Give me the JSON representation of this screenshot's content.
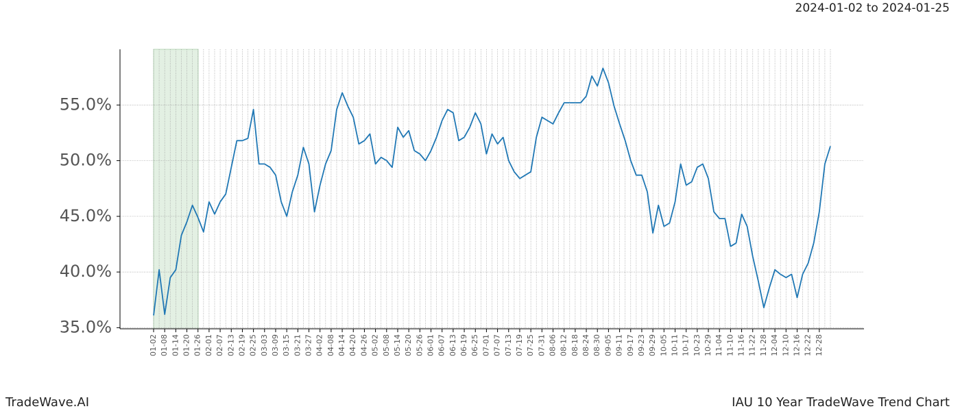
{
  "chart_data": {
    "type": "line",
    "title": "IAU 10 Year TradeWave Trend Chart",
    "subtitle": "2024-01-02 to 2024-01-25",
    "brand": "TradeWave.AI",
    "categories": [
      "01-02",
      null,
      "01-08",
      null,
      "01-14",
      null,
      "01-20",
      null,
      "01-26",
      null,
      "02-01",
      null,
      "02-07",
      null,
      "02-13",
      null,
      "02-19",
      null,
      "02-25",
      null,
      "03-03",
      null,
      "03-09",
      null,
      "03-15",
      null,
      "03-21",
      null,
      "03-27",
      null,
      "04-02",
      null,
      "04-08",
      null,
      "04-14",
      null,
      "04-20",
      null,
      "04-26",
      null,
      "05-02",
      null,
      "05-08",
      null,
      "05-14",
      null,
      "05-20",
      null,
      "05-26",
      null,
      "06-01",
      null,
      "06-07",
      null,
      "06-13",
      null,
      "06-19",
      null,
      "06-25",
      null,
      "07-01",
      null,
      "07-07",
      null,
      "07-13",
      null,
      "07-19",
      null,
      "07-25",
      null,
      "07-31",
      null,
      "08-06",
      null,
      "08-12",
      null,
      "08-18",
      null,
      "08-24",
      null,
      "08-30",
      null,
      "09-05",
      null,
      "09-11",
      null,
      "09-17",
      null,
      "09-23",
      null,
      "09-29",
      null,
      "10-05",
      null,
      "10-11",
      null,
      "10-17",
      null,
      "10-23",
      null,
      "10-29",
      null,
      "11-04",
      null,
      "11-10",
      null,
      "11-16",
      null,
      "11-22",
      null,
      "11-28",
      null,
      "12-04",
      null,
      "12-10",
      null,
      "12-16",
      null,
      "12-22",
      null,
      "12-28",
      null,
      null
    ],
    "series": [
      {
        "name": "IAU",
        "color": "#1f77b4",
        "values": [
          36.1,
          40.2,
          36.2,
          39.5,
          40.2,
          43.3,
          44.5,
          46.0,
          44.9,
          43.6,
          46.3,
          45.2,
          46.3,
          47.0,
          49.4,
          51.8,
          51.8,
          52.0,
          54.6,
          49.7,
          49.7,
          49.4,
          48.7,
          46.3,
          45.0,
          47.2,
          48.7,
          51.2,
          49.7,
          45.4,
          47.8,
          49.7,
          50.9,
          54.6,
          56.1,
          54.9,
          53.9,
          51.5,
          51.8,
          52.4,
          49.7,
          50.3,
          50.0,
          49.4,
          53.0,
          52.1,
          52.7,
          50.9,
          50.6,
          50.0,
          50.9,
          52.1,
          53.6,
          54.6,
          54.3,
          51.8,
          52.1,
          53.0,
          54.3,
          53.3,
          50.6,
          52.4,
          51.5,
          52.1,
          50.0,
          49.0,
          48.4,
          48.7,
          49.0,
          52.1,
          53.9,
          53.6,
          53.3,
          54.3,
          55.2,
          55.2,
          55.2,
          55.2,
          55.8,
          57.6,
          56.7,
          58.3,
          57.0,
          54.9,
          53.3,
          51.8,
          50.0,
          48.7,
          48.7,
          47.2,
          43.5,
          46.0,
          44.1,
          44.4,
          46.3,
          49.7,
          47.8,
          48.1,
          49.4,
          49.7,
          48.4,
          45.4,
          44.8,
          44.8,
          42.3,
          42.6,
          45.2,
          44.1,
          41.4,
          39.2,
          36.8,
          38.6,
          40.2,
          39.8,
          39.5,
          39.8,
          37.7,
          39.8,
          40.8,
          42.6,
          45.4,
          49.7,
          51.3
        ]
      }
    ],
    "ylim": [
      34.9,
      60
    ],
    "yticks": [
      {
        "value": 35,
        "label": "35.0%"
      },
      {
        "value": 40,
        "label": "40.0%"
      },
      {
        "value": 45,
        "label": "45.0%"
      },
      {
        "value": 50,
        "label": "50.0%"
      },
      {
        "value": 55,
        "label": "55.0%"
      }
    ],
    "grid": true
  }
}
